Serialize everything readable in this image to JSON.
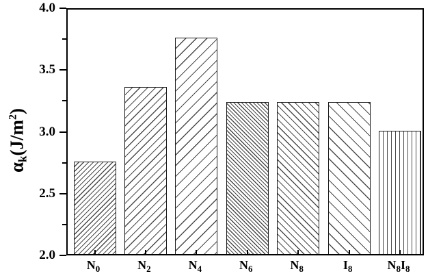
{
  "chart_data": {
    "type": "bar",
    "title": "",
    "xlabel": "",
    "ylabel": {
      "symbol": "α",
      "symbol_sub": "k",
      "unit_open": "(J/m",
      "unit_sup": "2",
      "unit_close": ")"
    },
    "categories": [
      {
        "name": "N0",
        "parts": [
          {
            "base": "N",
            "sub": "0"
          }
        ]
      },
      {
        "name": "N2",
        "parts": [
          {
            "base": "N",
            "sub": "2"
          }
        ]
      },
      {
        "name": "N4",
        "parts": [
          {
            "base": "N",
            "sub": "4"
          }
        ]
      },
      {
        "name": "N6",
        "parts": [
          {
            "base": "N",
            "sub": "6"
          }
        ]
      },
      {
        "name": "N8",
        "parts": [
          {
            "base": "N",
            "sub": "8"
          }
        ]
      },
      {
        "name": "I8",
        "parts": [
          {
            "base": "I",
            "sub": "8"
          }
        ]
      },
      {
        "name": "N8I8",
        "parts": [
          {
            "base": "N",
            "sub": "8"
          },
          {
            "base": "I",
            "sub": "8"
          }
        ]
      }
    ],
    "values": [
      2.75,
      3.35,
      3.75,
      3.23,
      3.23,
      3.23,
      3.0
    ],
    "hatches": [
      {
        "direction": "/",
        "spacing": 5
      },
      {
        "direction": "/",
        "spacing": 8
      },
      {
        "direction": "/",
        "spacing": 11
      },
      {
        "direction": "\\",
        "spacing": 4
      },
      {
        "direction": "\\",
        "spacing": 7
      },
      {
        "direction": "\\",
        "spacing": 11
      },
      {
        "direction": "|",
        "spacing": 6
      }
    ],
    "ylim": [
      2.0,
      4.0
    ],
    "y_major_ticks": [
      4.0,
      3.5,
      3.0,
      2.5,
      2.0
    ],
    "y_tick_labels": [
      "4.0",
      "3.5",
      "3.0",
      "2.5",
      "2.0"
    ],
    "y_minor_ticks": [
      3.75,
      3.25,
      2.75,
      2.25
    ],
    "grid": false,
    "legend": null,
    "colors": {
      "background": "#ffffff",
      "frame": "#000000",
      "bar_fill": "#ffffff",
      "bar_edge": "#1a1a1a",
      "hatch": "#4a4a4a",
      "text": "#000000"
    }
  }
}
